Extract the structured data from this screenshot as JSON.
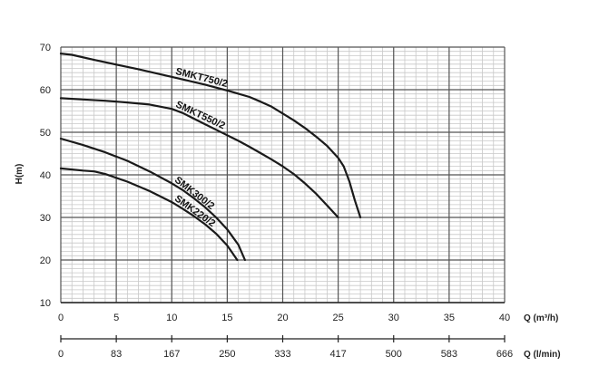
{
  "chart_data": {
    "type": "line",
    "ylabel": "H(m)",
    "xlabel": "Q (m³/h)",
    "xlabel2": "Q (l/min)",
    "xlim": [
      0,
      40
    ],
    "ylim": [
      10,
      70
    ],
    "xticks": [
      "0",
      "5",
      "10",
      "15",
      "20",
      "25",
      "30",
      "35",
      "40"
    ],
    "yticks": [
      "10",
      "20",
      "30",
      "40",
      "50",
      "60",
      "70"
    ],
    "x2ticks": [
      "0",
      "83",
      "167",
      "250",
      "333",
      "417",
      "500",
      "583",
      "666"
    ],
    "grid": true,
    "series": [
      {
        "name": "SMKT750/2",
        "x": [
          0,
          1,
          3,
          5,
          7,
          9,
          11,
          13,
          15,
          17,
          18,
          19,
          20,
          21,
          22,
          23,
          24,
          25,
          25.5,
          26,
          26.5,
          27
        ],
        "y": [
          68.5,
          68.2,
          67.0,
          65.9,
          64.8,
          63.6,
          62.4,
          61.2,
          59.8,
          58.3,
          57.2,
          56.0,
          54.4,
          52.8,
          51.0,
          49.0,
          46.8,
          44.0,
          42.0,
          38.5,
          34.0,
          30.0
        ]
      },
      {
        "name": "SMKT550/2",
        "x": [
          0,
          2,
          4,
          6,
          8,
          10,
          11,
          12,
          13,
          14,
          15,
          16,
          17,
          18,
          19,
          20,
          21,
          22,
          23,
          24,
          25
        ],
        "y": [
          58.0,
          57.7,
          57.4,
          57.0,
          56.5,
          55.5,
          54.5,
          53.2,
          51.9,
          50.6,
          49.3,
          48.0,
          46.6,
          45.1,
          43.6,
          42.0,
          40.2,
          38.0,
          35.6,
          32.8,
          30.0
        ]
      },
      {
        "name": "SMK300/2",
        "x": [
          0,
          2,
          4,
          6,
          8,
          10,
          11,
          12,
          13,
          14,
          15,
          16,
          16.6
        ],
        "y": [
          48.5,
          47.0,
          45.3,
          43.3,
          40.8,
          38.0,
          36.4,
          34.5,
          32.4,
          30.0,
          27.2,
          23.6,
          20.0
        ]
      },
      {
        "name": "SMK220/2",
        "x": [
          0,
          2,
          3,
          4,
          6,
          8,
          10,
          11,
          12,
          13,
          14,
          15,
          15.9
        ],
        "y": [
          41.5,
          41.0,
          40.8,
          40.2,
          38.4,
          36.2,
          33.6,
          32.0,
          30.3,
          28.4,
          26.2,
          23.4,
          20.0
        ]
      }
    ]
  }
}
